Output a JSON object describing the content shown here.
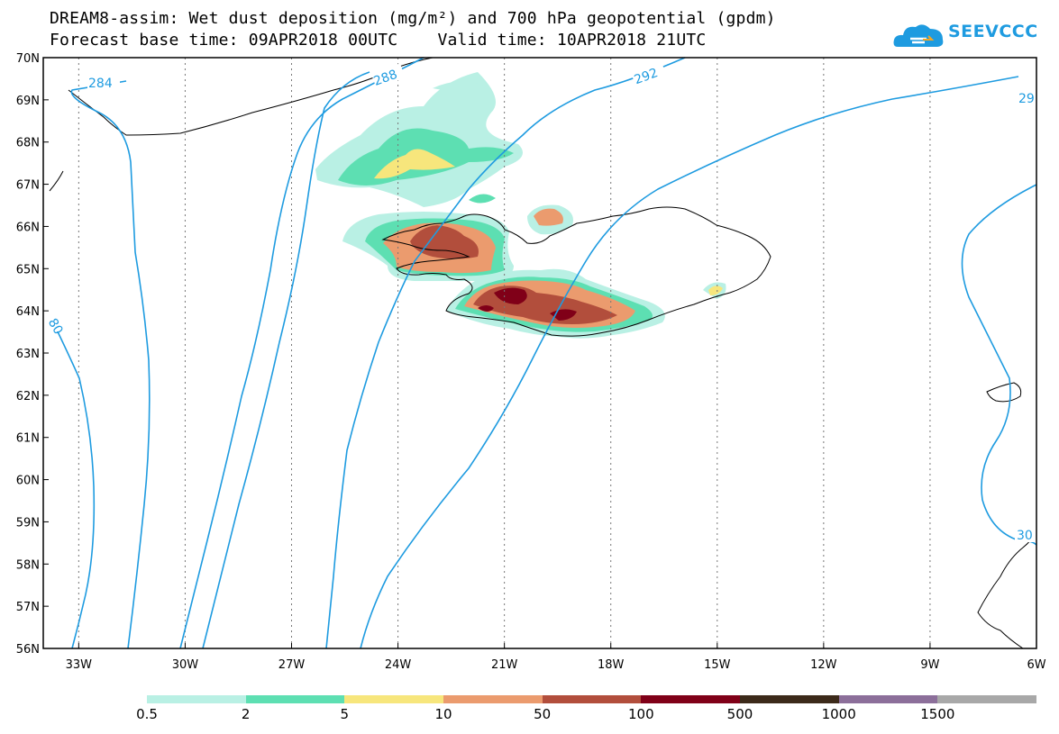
{
  "title": {
    "line1": "DREAM8-assim: Wet dust deposition (mg/m²) and 700 hPa geopotential (gpdm)",
    "line2": "Forecast base time: 09APR2018 00UTC    Valid time: 10APR2018 21UTC"
  },
  "logo": {
    "text": "SEEVCCC",
    "icon": "cloud-logo-icon",
    "color": "#1e9be0"
  },
  "map": {
    "lon_range": [
      -34,
      -6
    ],
    "lat_range": [
      56,
      70
    ],
    "lat_labels": [
      "70N",
      "69N",
      "68N",
      "67N",
      "66N",
      "65N",
      "64N",
      "63N",
      "62N",
      "61N",
      "60N",
      "59N",
      "58N",
      "57N",
      "56N"
    ],
    "lon_labels": [
      "33W",
      "30W",
      "27W",
      "24W",
      "21W",
      "18W",
      "15W",
      "12W",
      "9W",
      "6W"
    ],
    "contour_color": "#1e9be0",
    "contour_labels": [
      "284",
      "288",
      "292",
      "29",
      "80",
      "30"
    ]
  },
  "legend": {
    "colors": [
      "#b9f0e4",
      "#5ddfb2",
      "#f7e67c",
      "#eb9b6e",
      "#b24e3c",
      "#800018",
      "#3c2a1a",
      "#8c6f9a",
      "#a8a8a8"
    ],
    "labels": [
      "0.5",
      "2",
      "5",
      "10",
      "50",
      "100",
      "500",
      "1000",
      "1500"
    ]
  }
}
